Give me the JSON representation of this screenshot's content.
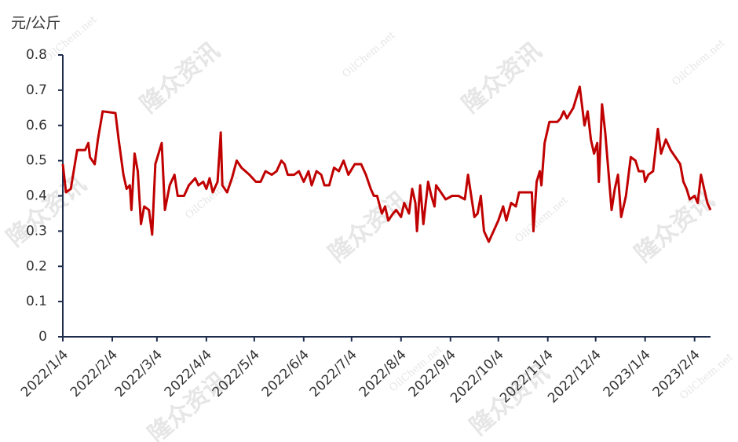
{
  "chart_data": {
    "type": "line",
    "ylabel": "元/公斤",
    "watermark": [
      "隆众资讯",
      "OilChem.net"
    ],
    "color": "#c00000",
    "x": [
      "2022/1/4",
      "2022/1/6",
      "2022/1/9",
      "2022/1/13",
      "2022/1/18",
      "2022/1/20",
      "2022/1/21",
      "2022/1/24",
      "2022/1/26",
      "2022/1/29",
      "2022/2/6",
      "2022/2/8",
      "2022/2/11",
      "2022/2/13",
      "2022/2/15",
      "2022/2/16",
      "2022/2/18",
      "2022/2/20",
      "2022/2/22",
      "2022/2/24",
      "2022/2/27",
      "2022/3/1",
      "2022/3/3",
      "2022/3/7",
      "2022/3/9",
      "2022/3/12",
      "2022/3/15",
      "2022/3/17",
      "2022/3/21",
      "2022/3/24",
      "2022/3/28",
      "2022/3/30",
      "2022/4/2",
      "2022/4/4",
      "2022/4/6",
      "2022/4/8",
      "2022/4/11",
      "2022/4/13",
      "2022/4/14",
      "2022/4/17",
      "2022/4/20",
      "2022/4/23",
      "2022/4/26",
      "2022/5/1",
      "2022/5/5",
      "2022/5/8",
      "2022/5/11",
      "2022/5/15",
      "2022/5/18",
      "2022/5/21",
      "2022/5/23",
      "2022/5/25",
      "2022/5/29",
      "2022/6/1",
      "2022/6/4",
      "2022/6/7",
      "2022/6/9",
      "2022/6/12",
      "2022/6/15",
      "2022/6/17",
      "2022/6/20",
      "2022/6/23",
      "2022/6/26",
      "2022/6/29",
      "2022/7/2",
      "2022/7/6",
      "2022/7/10",
      "2022/7/13",
      "2022/7/16",
      "2022/7/18",
      "2022/7/20",
      "2022/7/23",
      "2022/7/25",
      "2022/7/27",
      "2022/7/30",
      "2022/8/1",
      "2022/8/4",
      "2022/8/6",
      "2022/8/9",
      "2022/8/11",
      "2022/8/13",
      "2022/8/14",
      "2022/8/16",
      "2022/8/18",
      "2022/8/21",
      "2022/8/23",
      "2022/8/25",
      "2022/8/26",
      "2022/8/29",
      "2022/9/1",
      "2022/9/5",
      "2022/9/9",
      "2022/9/13",
      "2022/9/15",
      "2022/9/17",
      "2022/9/19",
      "2022/9/21",
      "2022/9/23",
      "2022/9/25",
      "2022/9/28",
      "2022/10/1",
      "2022/10/4",
      "2022/10/7",
      "2022/10/9",
      "2022/10/12",
      "2022/10/15",
      "2022/10/17",
      "2022/10/21",
      "2022/10/25",
      "2022/10/26",
      "2022/10/28",
      "2022/10/30",
      "2022/10/31",
      "2022/11/2",
      "2022/11/5",
      "2022/11/10",
      "2022/11/12",
      "2022/11/14",
      "2022/11/16",
      "2022/11/20",
      "2022/11/24",
      "2022/11/27",
      "2022/11/29",
      "2022/12/1",
      "2022/12/3",
      "2022/12/5",
      "2022/12/6",
      "2022/12/8",
      "2022/12/10",
      "2022/12/12",
      "2022/12/14",
      "2022/12/16",
      "2022/12/18",
      "2022/12/20",
      "2022/12/23",
      "2022/12/26",
      "2022/12/29",
      "2022/12/31",
      "2023/1/3",
      "2023/1/4",
      "2023/1/6",
      "2023/1/9",
      "2023/1/12",
      "2023/1/14",
      "2023/1/17",
      "2023/1/20",
      "2023/1/23",
      "2023/1/26",
      "2023/1/28",
      "2023/1/30",
      "2023/2/1",
      "2023/2/4",
      "2023/2/6",
      "2023/2/8",
      "2023/2/10",
      "2023/2/12",
      "2023/2/14"
    ],
    "values": [
      0.49,
      0.41,
      0.42,
      0.53,
      0.53,
      0.55,
      0.51,
      0.49,
      0.56,
      0.64,
      0.635,
      0.56,
      0.46,
      0.42,
      0.43,
      0.36,
      0.52,
      0.47,
      0.32,
      0.37,
      0.36,
      0.29,
      0.49,
      0.55,
      0.36,
      0.43,
      0.46,
      0.4,
      0.4,
      0.43,
      0.45,
      0.43,
      0.44,
      0.42,
      0.45,
      0.41,
      0.44,
      0.58,
      0.43,
      0.41,
      0.45,
      0.5,
      0.48,
      0.46,
      0.44,
      0.44,
      0.47,
      0.46,
      0.47,
      0.5,
      0.49,
      0.46,
      0.46,
      0.47,
      0.44,
      0.47,
      0.43,
      0.47,
      0.46,
      0.43,
      0.43,
      0.48,
      0.47,
      0.5,
      0.46,
      0.49,
      0.49,
      0.46,
      0.42,
      0.4,
      0.4,
      0.35,
      0.37,
      0.33,
      0.35,
      0.36,
      0.34,
      0.38,
      0.35,
      0.42,
      0.38,
      0.3,
      0.43,
      0.32,
      0.44,
      0.4,
      0.37,
      0.43,
      0.41,
      0.39,
      0.4,
      0.4,
      0.39,
      0.46,
      0.4,
      0.34,
      0.35,
      0.4,
      0.3,
      0.27,
      0.3,
      0.33,
      0.37,
      0.33,
      0.38,
      0.37,
      0.41,
      0.41,
      0.41,
      0.3,
      0.44,
      0.47,
      0.43,
      0.55,
      0.61,
      0.61,
      0.62,
      0.64,
      0.62,
      0.65,
      0.71,
      0.6,
      0.64,
      0.56,
      0.52,
      0.55,
      0.44,
      0.66,
      0.58,
      0.47,
      0.36,
      0.42,
      0.46,
      0.34,
      0.4,
      0.51,
      0.5,
      0.47,
      0.47,
      0.44,
      0.46,
      0.47,
      0.59,
      0.52,
      0.56,
      0.53,
      0.51,
      0.49,
      0.44,
      0.42,
      0.39,
      0.4,
      0.38,
      0.46,
      0.42,
      0.38,
      0.36
    ],
    "xlim": [
      "2022/1/4",
      "2023/2/14"
    ],
    "xticks": [
      "2022/1/4",
      "2022/2/4",
      "2022/3/4",
      "2022/4/4",
      "2022/5/4",
      "2022/6/4",
      "2022/7/4",
      "2022/8/4",
      "2022/9/4",
      "2022/10/4",
      "2022/11/4",
      "2022/12/4",
      "2023/1/4",
      "2023/2/4"
    ],
    "ylim": [
      0,
      0.8
    ],
    "yticks": [
      0,
      0.1,
      0.2,
      0.3,
      0.4,
      0.5,
      0.6,
      0.7,
      0.8
    ],
    "grid": false
  }
}
